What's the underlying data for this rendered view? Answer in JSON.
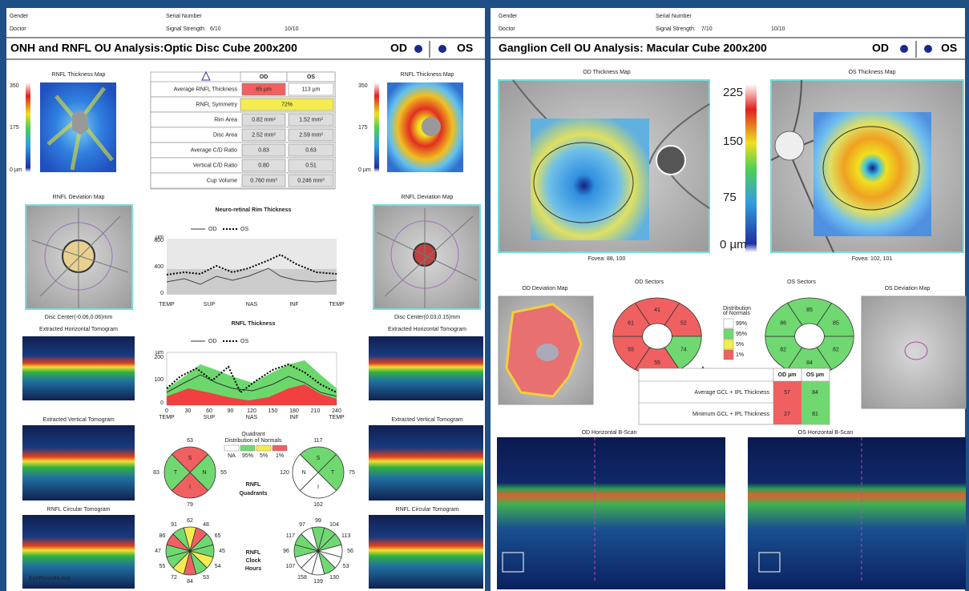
{
  "left": {
    "header": {
      "gender": "Gender",
      "serial": "Serial Number",
      "doctor": "Doctor",
      "signal_label": "Signal Strength:",
      "signal_od": "6/10",
      "signal_os": "10/10"
    },
    "title": "ONH and RNFL OU Analysis:Optic Disc Cube 200x200",
    "od": "OD",
    "os": "OS",
    "thickness_map": {
      "title": "RNFL Thickness Map",
      "scale": [
        "350",
        "175",
        "0 µm"
      ]
    },
    "table": {
      "header": [
        "OD",
        "OS"
      ],
      "rows": [
        [
          "Average RNFL Thickness",
          "65 µm",
          "113 µm"
        ],
        [
          "RNFL Symmetry",
          "72%"
        ],
        [
          "Rim Area",
          "0.82 mm²",
          "1.52 mm²"
        ],
        [
          "Disc Area",
          "2.52 mm²",
          "2.59 mm²"
        ],
        [
          "Average C/D Ratio",
          "0.83",
          "0.63"
        ],
        [
          "Vertical C/D Ratio",
          "0.80",
          "0.51"
        ],
        [
          "Cup Volume",
          "0.760 mm³",
          "0.246 mm³"
        ]
      ]
    },
    "deviation_map": "RNFL Deviation Map",
    "disc_center_od": "Disc Center(-0.06,0.06)mm",
    "disc_center_os": "Disc Center(0.03,0.15)mm",
    "nrrt": {
      "title": "Neuro-retinal Rim Thickness",
      "legend": [
        "OD",
        "OS"
      ],
      "unit": "µm",
      "yticks": [
        "800",
        "400",
        "0"
      ],
      "xlabels": [
        "TEMP",
        "SUP",
        "NAS",
        "INF",
        "TEMP"
      ]
    },
    "rnfl": {
      "title": "RNFL Thickness",
      "legend": [
        "OD",
        "OS"
      ],
      "unit": "µm",
      "yticks": [
        "200",
        "100",
        "0"
      ],
      "xnumbers": [
        "0",
        "30",
        "60",
        "90",
        "120",
        "150",
        "180",
        "210",
        "240"
      ],
      "xlabels": [
        "TEMP",
        "SUP",
        "NAS",
        "INF",
        "TEMP"
      ]
    },
    "tomograms": [
      "Extracted Horizontal Tomogram",
      "Extracted Vertical Tomogram",
      "RNFL Circular Tomogram"
    ],
    "quadrants": {
      "title": [
        "RNFL",
        "Quadrants"
      ],
      "od": {
        "values": [
          63,
          55,
          79,
          83
        ],
        "letters": [
          "S",
          "N",
          "I",
          "T"
        ]
      },
      "os": {
        "values": [
          117,
          75,
          162,
          120
        ],
        "letters": [
          "S",
          "T",
          "I",
          "N"
        ]
      }
    },
    "normals_legend": {
      "title": [
        "Quadrant",
        "Distribution of Normals"
      ],
      "labels": [
        "NA",
        "95%",
        "5%",
        "1%"
      ]
    },
    "clock_hours": {
      "title": [
        "RNFL",
        "Clock",
        "Hours"
      ],
      "od": [
        62,
        48,
        65,
        45,
        54,
        53,
        84,
        72,
        55,
        47,
        86,
        91
      ],
      "os": [
        99,
        104,
        113,
        56,
        53,
        130,
        139,
        158,
        107,
        96,
        117,
        97
      ]
    },
    "watermark": "EyeRounds.org"
  },
  "right": {
    "header": {
      "gender": "Gender",
      "serial": "Serial Number",
      "doctor": "Doctor",
      "signal_label": "Signal Strength:",
      "signal_od": "7/10",
      "signal_os": "10/10"
    },
    "title": "Ganglion Cell OU Analysis: Macular Cube 200x200",
    "od": "OD",
    "os": "OS",
    "od_map": "OD Thickness Map",
    "os_map": "OS Thickness Map",
    "scale": [
      "225",
      "150",
      "75",
      "0 µm"
    ],
    "fovea_od": "Fovea: 88, 100",
    "fovea_os": "Fovea: 102, 101",
    "od_deviation": "OD Deviation Map",
    "os_deviation": "OS Deviation Map",
    "od_sectors": {
      "title": "OD Sectors",
      "values": [
        41,
        52,
        74,
        55,
        55,
        61
      ]
    },
    "os_sectors": {
      "title": "OS Sectors",
      "values": [
        85,
        85,
        82,
        84,
        82,
        86
      ]
    },
    "legend": {
      "title": [
        "Distribution",
        "of Normals"
      ],
      "labels": [
        "99%",
        "95%",
        "5%",
        "1%"
      ]
    },
    "table": {
      "header": [
        "OD µm",
        "OS µm"
      ],
      "rows": [
        [
          "Average GCL + IPL Thickness",
          "57",
          "84"
        ],
        [
          "Minimum GCL + IPL Thickness",
          "27",
          "81"
        ]
      ]
    },
    "od_bscan": "OD Horizontal B-Scan",
    "os_bscan": "OS Horizontal B-Scan"
  }
}
